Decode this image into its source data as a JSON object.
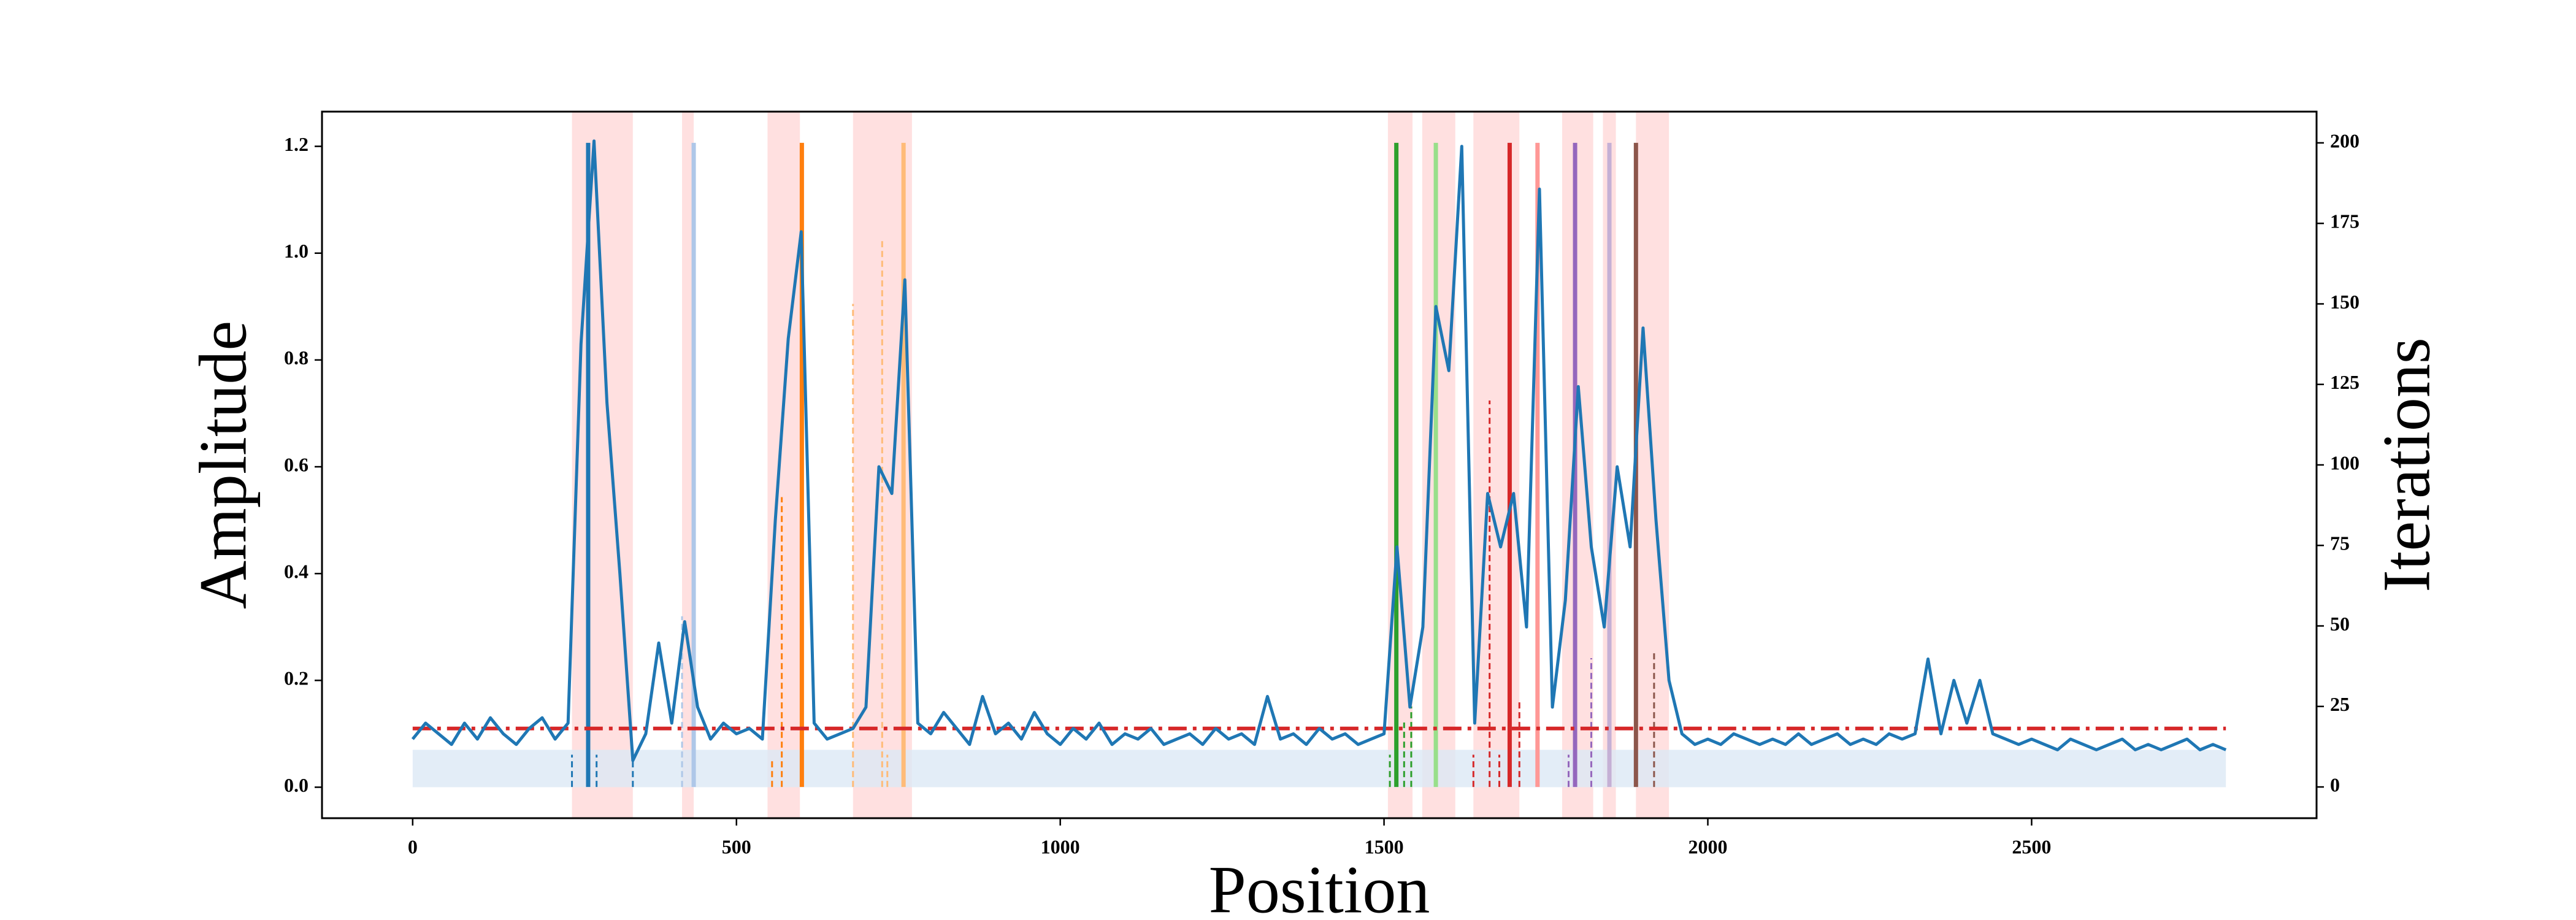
{
  "chart_data": {
    "type": "line",
    "x_label": "Position",
    "y_label": "Amplitude",
    "y2_label": "Iterations",
    "xlim": [
      -140,
      2940
    ],
    "ylim": [
      -0.058,
      1.265
    ],
    "y2lim": [
      -9.7,
      209.7
    ],
    "xticks": [
      0,
      500,
      1000,
      1500,
      2000,
      2500
    ],
    "yticks": [
      {
        "value": 0,
        "label": "0.0"
      },
      0.2,
      0.4,
      0.6,
      0.8,
      {
        "value": 1,
        "label": "1.0"
      },
      1.2
    ],
    "y2ticks": [
      0,
      25,
      50,
      75,
      100,
      125,
      150,
      175,
      200
    ],
    "x": [
      0,
      20,
      40,
      60,
      80,
      100,
      120,
      140,
      160,
      180,
      200,
      220,
      240,
      260,
      280,
      300,
      320,
      340,
      360,
      380,
      400,
      420,
      440,
      460,
      480,
      500,
      520,
      540,
      560,
      580,
      600,
      620,
      640,
      660,
      680,
      700,
      720,
      740,
      760,
      780,
      800,
      820,
      840,
      860,
      880,
      900,
      920,
      940,
      960,
      980,
      1000,
      1020,
      1040,
      1060,
      1080,
      1100,
      1120,
      1140,
      1160,
      1180,
      1200,
      1220,
      1240,
      1260,
      1280,
      1300,
      1320,
      1340,
      1360,
      1380,
      1400,
      1420,
      1440,
      1460,
      1480,
      1500,
      1520,
      1540,
      1560,
      1580,
      1600,
      1620,
      1640,
      1660,
      1680,
      1700,
      1720,
      1740,
      1760,
      1780,
      1800,
      1820,
      1840,
      1860,
      1880,
      1900,
      1920,
      1940,
      1960,
      1980,
      2000,
      2020,
      2040,
      2060,
      2080,
      2100,
      2120,
      2140,
      2160,
      2180,
      2200,
      2220,
      2240,
      2260,
      2280,
      2300,
      2320,
      2340,
      2360,
      2380,
      2400,
      2420,
      2440,
      2460,
      2480,
      2500,
      2520,
      2540,
      2560,
      2580,
      2600,
      2620,
      2640,
      2660,
      2680,
      2700,
      2720,
      2740,
      2760,
      2780,
      2800
    ],
    "series": [
      {
        "color": "#1f77b4",
        "values": [
          0.09,
          0.12,
          0.1,
          0.08,
          0.12,
          0.09,
          0.13,
          0.1,
          0.08,
          0.11,
          0.13,
          0.09,
          0.12,
          0.83,
          1.21,
          0.72,
          0.4,
          0.05,
          0.1,
          0.27,
          0.12,
          0.31,
          0.15,
          0.09,
          0.12,
          0.1,
          0.11,
          0.09,
          0.5,
          0.84,
          1.04,
          0.12,
          0.09,
          0.1,
          0.11,
          0.15,
          0.6,
          0.55,
          0.95,
          0.12,
          0.1,
          0.14,
          0.11,
          0.08,
          0.17,
          0.1,
          0.12,
          0.09,
          0.14,
          0.1,
          0.08,
          0.11,
          0.09,
          0.12,
          0.08,
          0.1,
          0.09,
          0.11,
          0.08,
          0.09,
          0.1,
          0.08,
          0.11,
          0.09,
          0.1,
          0.08,
          0.17,
          0.09,
          0.1,
          0.08,
          0.11,
          0.09,
          0.1,
          0.08,
          0.09,
          0.1,
          0.45,
          0.15,
          0.3,
          0.9,
          0.78,
          1.2,
          0.12,
          0.55,
          0.45,
          0.55,
          0.3,
          1.12,
          0.15,
          0.35,
          0.75,
          0.45,
          0.3,
          0.6,
          0.45,
          0.86,
          0.5,
          0.2,
          0.1,
          0.08,
          0.09,
          0.08,
          0.1,
          0.09,
          0.08,
          0.09,
          0.08,
          0.1,
          0.08,
          0.09,
          0.1,
          0.08,
          0.09,
          0.08,
          0.1,
          0.09,
          0.1,
          0.24,
          0.1,
          0.2,
          0.12,
          0.2,
          0.1,
          0.09,
          0.08,
          0.09,
          0.08,
          0.07,
          0.09,
          0.08,
          0.07,
          0.08,
          0.09,
          0.07,
          0.08,
          0.07,
          0.08,
          0.09,
          0.07,
          0.08,
          0.07
        ]
      }
    ],
    "threshold": {
      "value": 0.11,
      "color": "#d62728"
    },
    "band": {
      "x": [
        0,
        2800
      ],
      "y": [
        0,
        0.07
      ],
      "color": "#dce8f5"
    },
    "regions_color": "#ffd6d6",
    "regions": [
      [
        246,
        340
      ],
      [
        416,
        434
      ],
      [
        548,
        598
      ],
      [
        680,
        771
      ],
      [
        1506,
        1544
      ],
      [
        1559,
        1610
      ],
      [
        1638,
        1709
      ],
      [
        1775,
        1823
      ],
      [
        1838,
        1858
      ],
      [
        1889,
        1940
      ]
    ],
    "markers": [
      {
        "x": 271,
        "value": 200,
        "color": "#1f77b4"
      },
      {
        "x": 434,
        "value": 200,
        "color": "#aec7e8"
      },
      {
        "x": 601,
        "value": 200,
        "color": "#ff7f0e"
      },
      {
        "x": 758,
        "value": 200,
        "color": "#ffbb78"
      },
      {
        "x": 1519,
        "value": 200,
        "color": "#2ca02c"
      },
      {
        "x": 1580,
        "value": 200,
        "color": "#98df8a"
      },
      {
        "x": 1694,
        "value": 200,
        "color": "#d62728"
      },
      {
        "x": 1737,
        "value": 200,
        "color": "#ff9896"
      },
      {
        "x": 1795,
        "value": 200,
        "color": "#9467bd"
      },
      {
        "x": 1848,
        "value": 200,
        "color": "#c5b0d5"
      },
      {
        "x": 1889,
        "value": 200,
        "color": "#8c564b"
      }
    ],
    "dashed_markers": [
      {
        "x": 246,
        "value": 10,
        "color": "#1f77b4"
      },
      {
        "x": 284,
        "value": 10,
        "color": "#1f77b4"
      },
      {
        "x": 340,
        "value": 10,
        "color": "#1f77b4"
      },
      {
        "x": 416,
        "value": 53,
        "color": "#aec7e8"
      },
      {
        "x": 555,
        "value": 8,
        "color": "#ff7f0e"
      },
      {
        "x": 570,
        "value": 90,
        "color": "#ff7f0e"
      },
      {
        "x": 680,
        "value": 150,
        "color": "#ffbb78"
      },
      {
        "x": 725,
        "value": 170,
        "color": "#ffbb78"
      },
      {
        "x": 733,
        "value": 10,
        "color": "#ffbb78"
      },
      {
        "x": 1509,
        "value": 10,
        "color": "#2ca02c"
      },
      {
        "x": 1531,
        "value": 20,
        "color": "#2ca02c"
      },
      {
        "x": 1542,
        "value": 25,
        "color": "#2ca02c"
      },
      {
        "x": 1638,
        "value": 10,
        "color": "#d62728"
      },
      {
        "x": 1663,
        "value": 120,
        "color": "#d62728"
      },
      {
        "x": 1678,
        "value": 10,
        "color": "#d62728"
      },
      {
        "x": 1709,
        "value": 27,
        "color": "#d62728"
      },
      {
        "x": 1785,
        "value": 10,
        "color": "#9467bd"
      },
      {
        "x": 1820,
        "value": 40,
        "color": "#9467bd"
      },
      {
        "x": 1917,
        "value": 42,
        "color": "#8c564b"
      }
    ]
  }
}
